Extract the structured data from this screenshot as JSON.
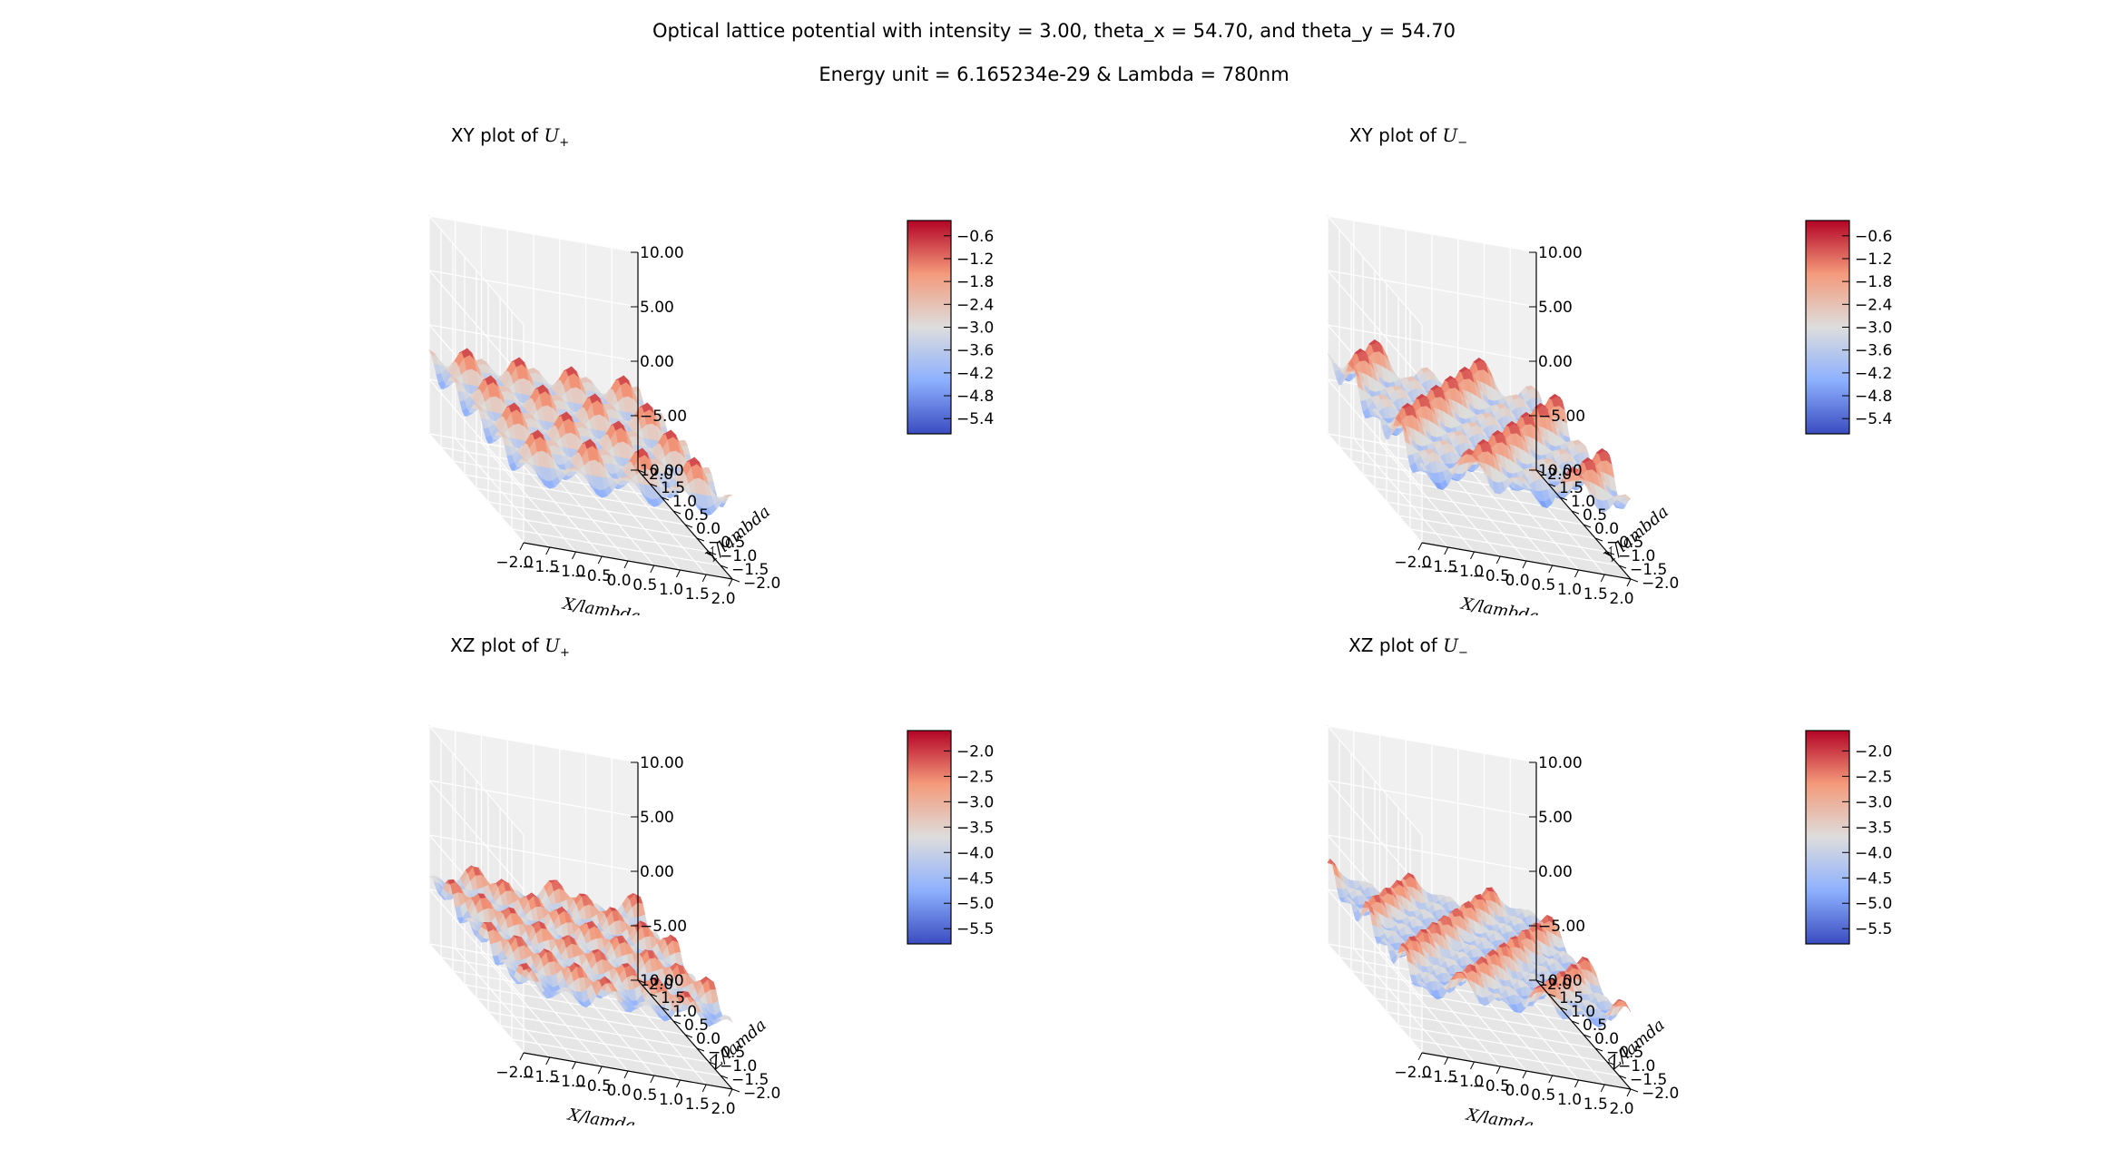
{
  "suptitle": {
    "line1": "Optical lattice potential with intensity = 3.00, theta_x = 54.70, and theta_y = 54.70",
    "line2": "Energy unit = 6.165234e-29 & Lambda = 780nm"
  },
  "chart_data": [
    {
      "type": "surface3d",
      "title_prefix": "XY plot of ",
      "title_symbol": "U",
      "title_sub": "+",
      "xlabel": "X/lambda",
      "ylabel": "Y/lambda",
      "xlim": [
        -2.0,
        2.0
      ],
      "ylim": [
        -2.0,
        2.0
      ],
      "zlim": [
        -10.0,
        10.0
      ],
      "x_ticks": [
        "−2.0",
        "−1.5",
        "−1.0",
        "−0.5",
        "0.0",
        "0.5",
        "1.0",
        "1.5",
        "2.0"
      ],
      "y_ticks": [
        "−2.0",
        "−1.5",
        "−1.0",
        "−0.5",
        "0.0",
        "0.5",
        "1.0",
        "1.5",
        "2.0"
      ],
      "z_ticks": [
        "10.00",
        "5.00",
        "0.00",
        "−5.00",
        "10.00"
      ],
      "value_range": [
        -5.8,
        -0.2
      ],
      "colorbar_ticks": [
        "−0.6",
        "−1.2",
        "−1.8",
        "−2.4",
        "−3.0",
        "−3.6",
        "−4.2",
        "−4.8",
        "−5.4"
      ],
      "colormap": [
        "#3b4cc0",
        "#8db0fe",
        "#dddddd",
        "#f49a7b",
        "#b40426"
      ]
    },
    {
      "type": "surface3d",
      "title_prefix": "XY plot of ",
      "title_symbol": "U",
      "title_sub": "−",
      "xlabel": "X/lambda",
      "ylabel": "Y/lambda",
      "xlim": [
        -2.0,
        2.0
      ],
      "ylim": [
        -2.0,
        2.0
      ],
      "zlim": [
        -10.0,
        10.0
      ],
      "x_ticks": [
        "−2.0",
        "−1.5",
        "−1.0",
        "−0.5",
        "0.0",
        "0.5",
        "1.0",
        "1.5",
        "2.0"
      ],
      "y_ticks": [
        "−2.0",
        "−1.5",
        "−1.0",
        "−0.5",
        "0.0",
        "0.5",
        "1.0",
        "1.5",
        "2.0"
      ],
      "z_ticks": [
        "10.00",
        "5.00",
        "0.00",
        "−5.00",
        "10.00"
      ],
      "value_range": [
        -5.8,
        -0.2
      ],
      "colorbar_ticks": [
        "−0.6",
        "−1.2",
        "−1.8",
        "−2.4",
        "−3.0",
        "−3.6",
        "−4.2",
        "−4.8",
        "−5.4"
      ],
      "colormap": [
        "#3b4cc0",
        "#8db0fe",
        "#dddddd",
        "#f49a7b",
        "#b40426"
      ]
    },
    {
      "type": "surface3d",
      "title_prefix": "XZ plot of ",
      "title_symbol": "U",
      "title_sub": "+",
      "xlabel": "X/lamda",
      "ylabel": "Z/lamda",
      "xlim": [
        -2.0,
        2.0
      ],
      "ylim": [
        -2.0,
        2.0
      ],
      "zlim": [
        -10.0,
        10.0
      ],
      "x_ticks": [
        "−2.0",
        "−1.5",
        "−1.0",
        "−0.5",
        "0.0",
        "0.5",
        "1.0",
        "1.5",
        "2.0"
      ],
      "y_ticks": [
        "−2.0",
        "−1.5",
        "−1.0",
        "−0.5",
        "0.0",
        "0.5",
        "1.0",
        "1.5",
        "2.0"
      ],
      "z_ticks": [
        "10.00",
        "5.00",
        "0.00",
        "−5.00",
        "10.00"
      ],
      "value_range": [
        -5.8,
        -1.6
      ],
      "colorbar_ticks": [
        "−2.0",
        "−2.5",
        "−3.0",
        "−3.5",
        "−4.0",
        "−4.5",
        "−5.0",
        "−5.5"
      ],
      "colormap": [
        "#3b4cc0",
        "#8db0fe",
        "#dddddd",
        "#f49a7b",
        "#b40426"
      ]
    },
    {
      "type": "surface3d",
      "title_prefix": "XZ plot of ",
      "title_symbol": "U",
      "title_sub": "−",
      "xlabel": "X/lamda",
      "ylabel": "Z/lamda",
      "xlim": [
        -2.0,
        2.0
      ],
      "ylim": [
        -2.0,
        2.0
      ],
      "zlim": [
        -10.0,
        10.0
      ],
      "x_ticks": [
        "−2.0",
        "−1.5",
        "−1.0",
        "−0.5",
        "0.0",
        "0.5",
        "1.0",
        "1.5",
        "2.0"
      ],
      "y_ticks": [
        "−2.0",
        "−1.5",
        "−1.0",
        "−0.5",
        "0.0",
        "0.5",
        "1.0",
        "1.5",
        "2.0"
      ],
      "z_ticks": [
        "10.00",
        "5.00",
        "0.00",
        "−5.00",
        "10.00"
      ],
      "value_range": [
        -5.8,
        -1.6
      ],
      "colorbar_ticks": [
        "−2.0",
        "−2.5",
        "−3.0",
        "−3.5",
        "−4.0",
        "−4.5",
        "−5.0",
        "−5.5"
      ],
      "colormap": [
        "#3b4cc0",
        "#8db0fe",
        "#dddddd",
        "#f49a7b",
        "#b40426"
      ]
    }
  ]
}
